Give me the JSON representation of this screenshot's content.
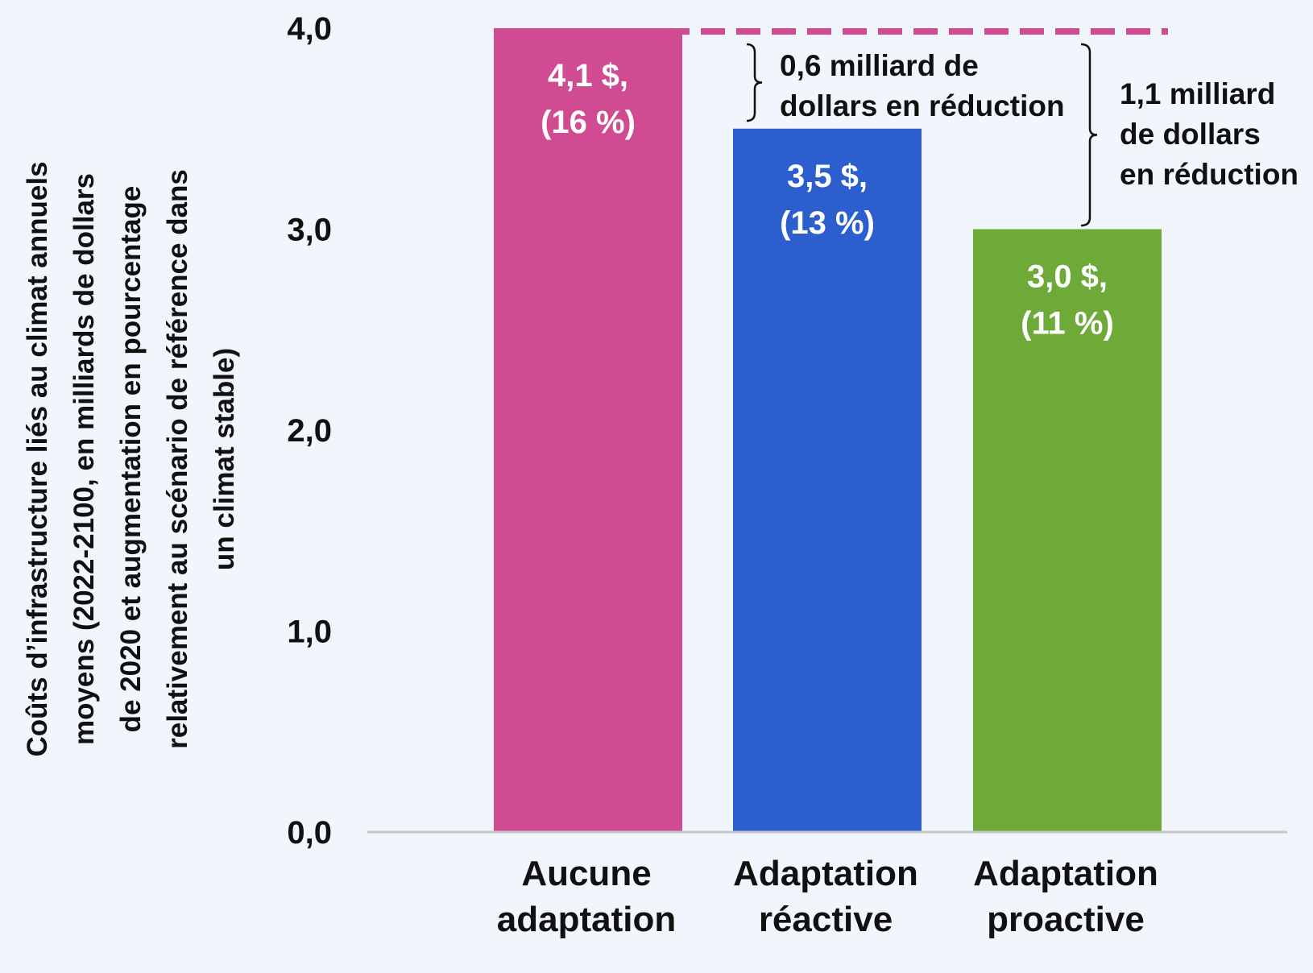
{
  "chart_data": {
    "type": "bar",
    "categories": [
      [
        "Aucune",
        "adaptation"
      ],
      [
        "Adaptation",
        "réactive"
      ],
      [
        "Adaptation",
        "proactive"
      ]
    ],
    "values": [
      4.1,
      3.5,
      3.0
    ],
    "value_labels": [
      [
        "4,1 $,",
        "(16 %)"
      ],
      [
        "3,5 $,",
        "(13 %)"
      ],
      [
        "3,0 $,",
        "(11 %)"
      ]
    ],
    "colors": [
      "#d14b92",
      "#2c5fcd",
      "#6eaa38"
    ],
    "ylabel": [
      "Coûts d’infrastructure liés au climat annuels",
      "moyens (2022-2100, en milliards de dollars",
      "de 2020 et augmentation en pourcentage",
      "relativement au scénario de référence dans",
      "un climat stable)"
    ],
    "ylim": [
      0,
      4
    ],
    "yticks": [
      0,
      1,
      2,
      3,
      4
    ],
    "ytick_labels": [
      "0,0",
      "1,0",
      "2,0",
      "3,0",
      "4,0"
    ],
    "reference_line": {
      "value": 4.0,
      "style": "dashed",
      "color": "#d14b92"
    },
    "annotations": [
      {
        "from": 4.0,
        "to": 3.5,
        "lines": [
          "0,6 milliard de",
          "dollars en réduction"
        ]
      },
      {
        "from": 4.0,
        "to": 3.0,
        "lines": [
          "1,1 milliard",
          "de dollars",
          "en réduction"
        ]
      }
    ],
    "grid": false,
    "legend": "none"
  }
}
